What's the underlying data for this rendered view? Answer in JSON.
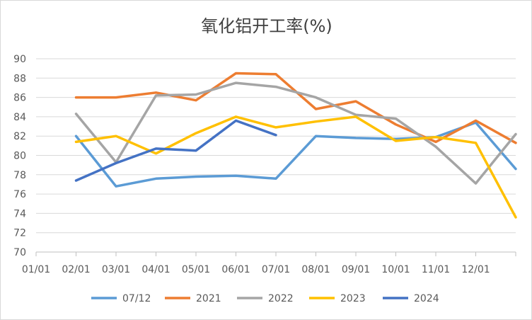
{
  "chart_data": {
    "type": "line",
    "title": "氧化铝开工率(%)",
    "xlabel": "",
    "ylabel": "",
    "categories": [
      "01/01",
      "02/01",
      "03/01",
      "04/01",
      "05/01",
      "06/01",
      "07/01",
      "08/01",
      "09/01",
      "10/01",
      "11/01",
      "12/01"
    ],
    "x_extent_months": [
      0,
      12
    ],
    "ylim": [
      70,
      90
    ],
    "yticks": [
      70,
      72,
      74,
      76,
      78,
      80,
      82,
      84,
      86,
      88,
      90
    ],
    "grid": "horizontal",
    "legend": "bottom",
    "series": [
      {
        "name": "07/12",
        "color": "#5b9bd5",
        "x": [
          1,
          2,
          3,
          4,
          5,
          6,
          7,
          8,
          9,
          10,
          11,
          12
        ],
        "y": [
          82.0,
          76.8,
          77.6,
          77.8,
          77.9,
          77.6,
          82.0,
          81.8,
          81.7,
          81.9,
          83.4,
          78.6
        ]
      },
      {
        "name": "2021",
        "color": "#ed7d31",
        "x": [
          1,
          2,
          3,
          4,
          5,
          6,
          7,
          8,
          9,
          10,
          11,
          12
        ],
        "y": [
          86.0,
          86.0,
          86.5,
          85.7,
          88.5,
          88.4,
          84.8,
          85.6,
          83.2,
          81.4,
          83.6,
          81.3
        ]
      },
      {
        "name": "2022",
        "color": "#a5a5a5",
        "x": [
          1,
          2,
          3,
          4,
          5,
          6,
          7,
          8,
          9,
          10,
          11,
          12
        ],
        "y": [
          84.3,
          79.3,
          86.2,
          86.3,
          87.5,
          87.1,
          86.0,
          84.2,
          83.8,
          80.9,
          77.1,
          82.2
        ]
      },
      {
        "name": "2023",
        "color": "#ffc000",
        "x": [
          1,
          2,
          3,
          4,
          5,
          6,
          7,
          8,
          9,
          10,
          11,
          12
        ],
        "y": [
          81.4,
          82.0,
          80.2,
          82.3,
          84.0,
          82.9,
          83.5,
          84.0,
          81.5,
          81.9,
          81.3,
          73.6
        ]
      },
      {
        "name": "2024",
        "color": "#4472c4",
        "x": [
          1,
          2,
          3,
          4,
          5,
          6
        ],
        "y": [
          77.4,
          79.2,
          80.7,
          80.5,
          83.6,
          82.1
        ]
      }
    ]
  }
}
